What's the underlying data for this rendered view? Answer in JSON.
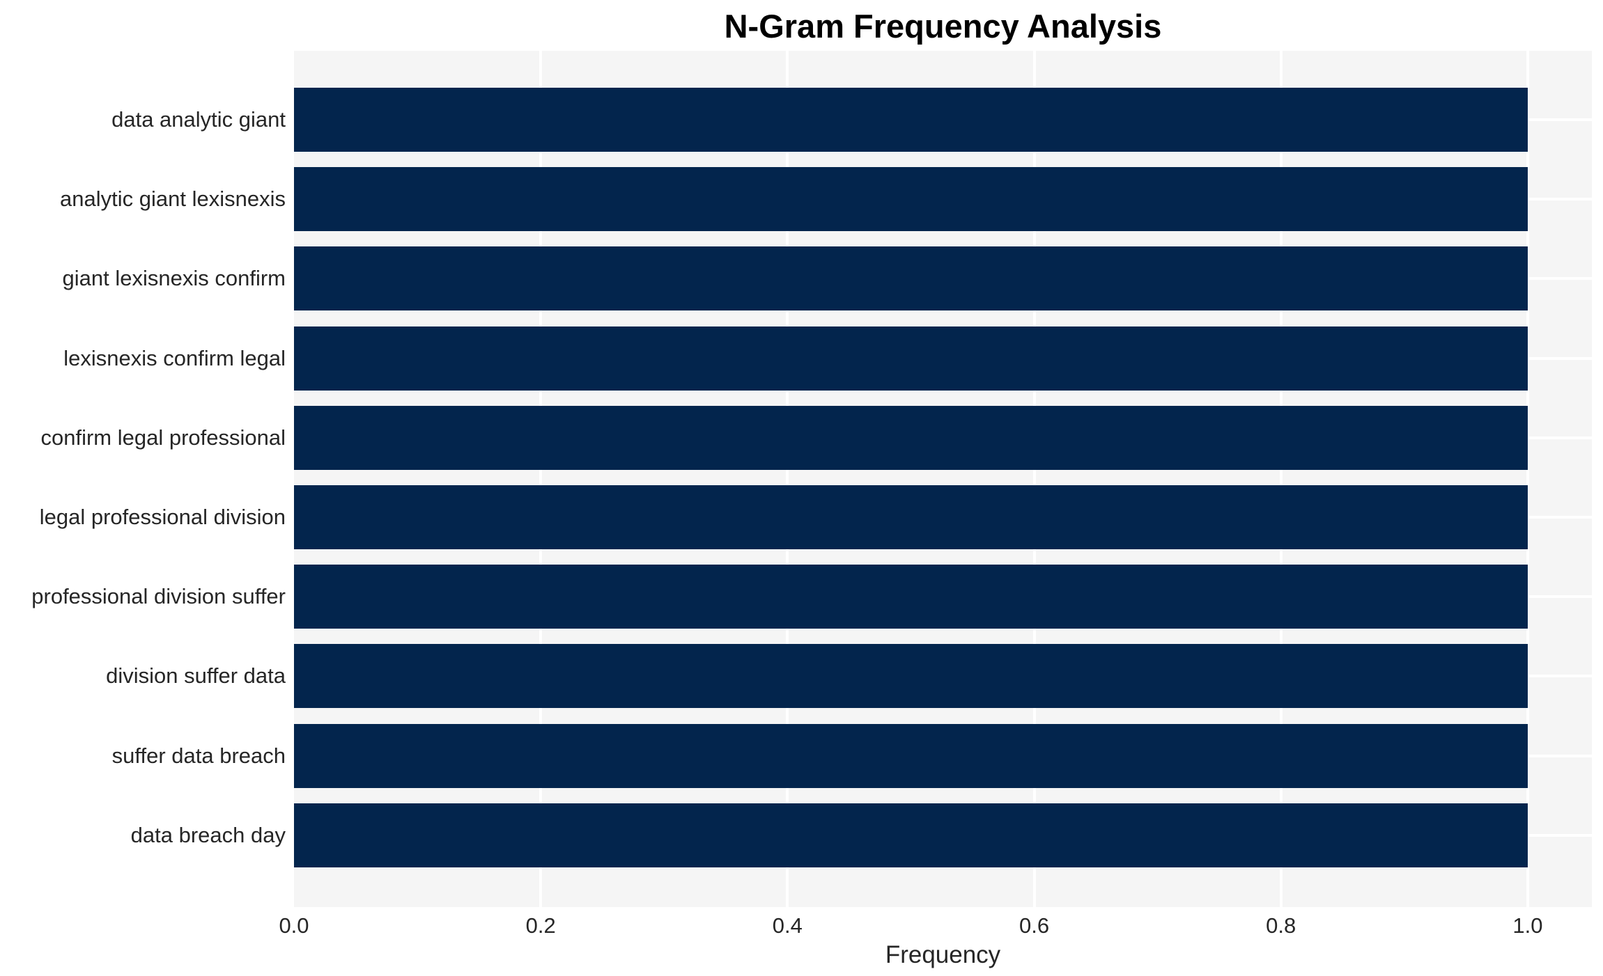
{
  "chart_data": {
    "type": "bar",
    "orientation": "horizontal",
    "title": "N-Gram Frequency Analysis",
    "xlabel": "Frequency",
    "ylabel": "",
    "categories": [
      "data analytic giant",
      "analytic giant lexisnexis",
      "giant lexisnexis confirm",
      "lexisnexis confirm legal",
      "confirm legal professional",
      "legal professional division",
      "professional division suffer",
      "division suffer data",
      "suffer data breach",
      "data breach day"
    ],
    "values": [
      1.0,
      1.0,
      1.0,
      1.0,
      1.0,
      1.0,
      1.0,
      1.0,
      1.0,
      1.0
    ],
    "x_tick_values": [
      0.0,
      0.2,
      0.4,
      0.6,
      0.8,
      1.0
    ],
    "x_tick_labels": [
      "0.0",
      "0.2",
      "0.4",
      "0.6",
      "0.8",
      "1.0"
    ],
    "xlim": [
      0,
      1.052
    ],
    "grid": true,
    "legend": false,
    "colors": {
      "bar": "#03254d",
      "panel_background": "#f5f5f5",
      "gridline": "#ffffff",
      "tick_text": "#262626",
      "title_text": "#000000",
      "figure_background": "#ffffff"
    }
  }
}
